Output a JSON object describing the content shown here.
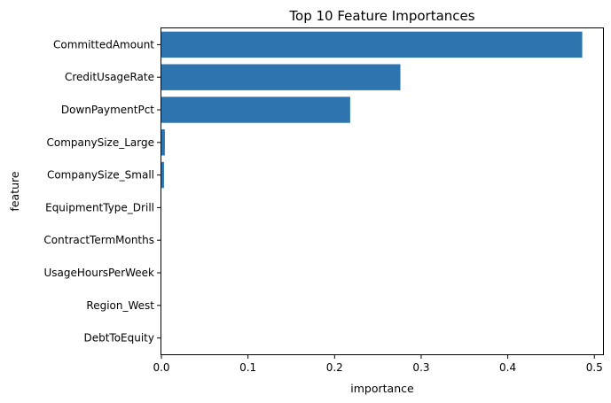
{
  "chart_data": {
    "type": "bar",
    "orientation": "horizontal",
    "title": "Top 10 Feature Importances",
    "xlabel": "importance",
    "ylabel": "feature",
    "xlim": [
      0,
      0.51
    ],
    "xticks": [
      0,
      0.1,
      0.2,
      0.3,
      0.4,
      0.5
    ],
    "xtick_labels": [
      "0.0",
      "0.1",
      "0.2",
      "0.3",
      "0.4",
      "0.5"
    ],
    "grid": false,
    "legend": "none",
    "bar_color": "#2e75b0",
    "categories": [
      "CommittedAmount",
      "CreditUsageRate",
      "DownPaymentPct",
      "CompanySize_Large",
      "CompanySize_Small",
      "EquipmentType_Drill",
      "ContractTermMonths",
      "UsageHoursPerWeek",
      "Region_West",
      "DebtToEquity"
    ],
    "values": [
      0.486,
      0.276,
      0.218,
      0.004,
      0.003,
      0.0,
      0.0,
      0.0,
      0.0,
      0.0
    ]
  }
}
